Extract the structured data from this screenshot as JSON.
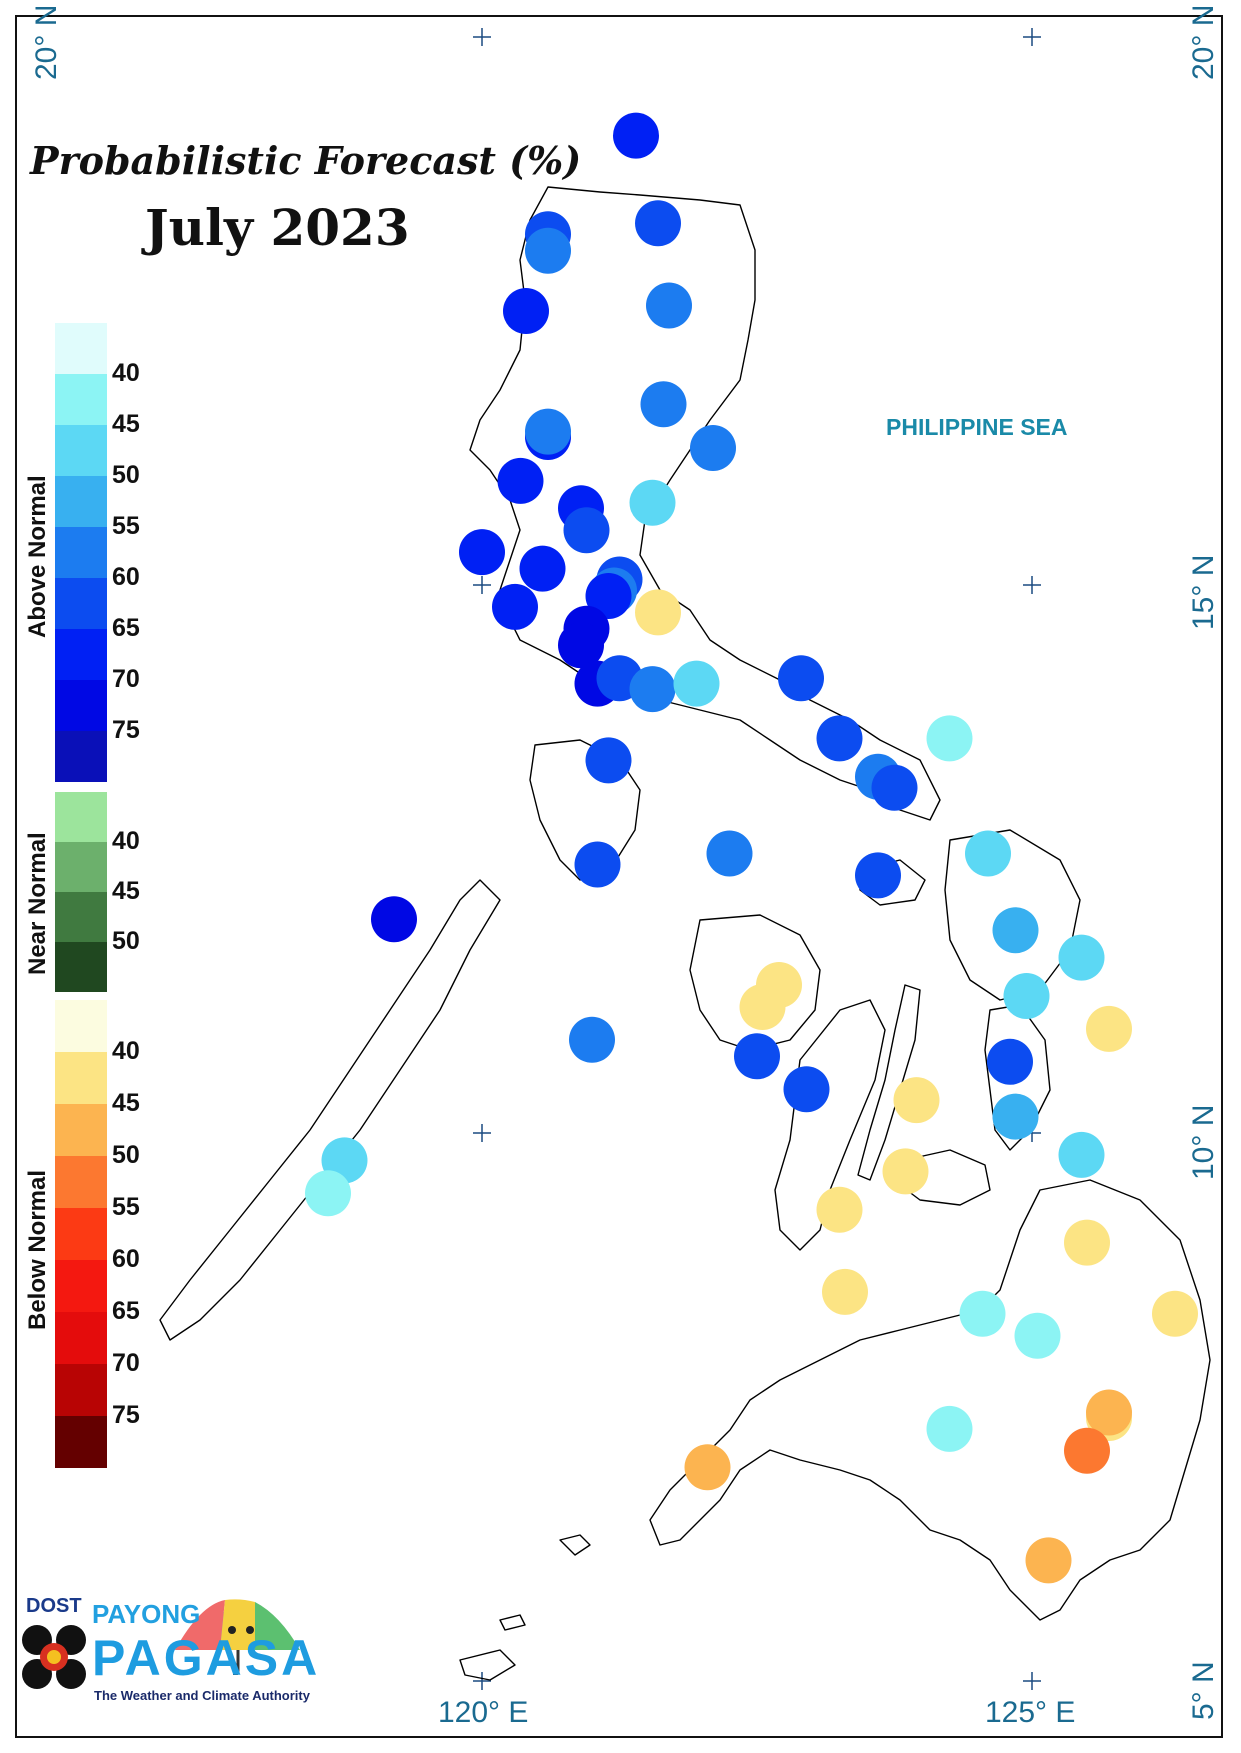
{
  "title": "Probabilistic Forecast (%)",
  "subtitle": "July 2023",
  "sea_label": "PHILIPPINE SEA",
  "coords": {
    "lat_20_left": "20° N",
    "lat_20_right": "20° N",
    "lat_15": "15° N",
    "lat_10": "10° N",
    "lat_5": "5° N",
    "lon_120": "120° E",
    "lon_125": "125° E"
  },
  "legend": {
    "above": {
      "label": "Above Normal",
      "colors": [
        "#e0fcfc",
        "#8cf4f4",
        "#5cd8f4",
        "#38b0f0",
        "#1c7cf0",
        "#0c4cf0",
        "#0020f4",
        "#0008e4",
        "#0a10b8"
      ],
      "ticks": [
        "40",
        "45",
        "50",
        "55",
        "60",
        "65",
        "70",
        "75"
      ]
    },
    "near": {
      "label": "Near Normal",
      "colors": [
        "#9ce49c",
        "#6cb06c",
        "#407a40",
        "#204820"
      ],
      "ticks": [
        "40",
        "45",
        "50"
      ]
    },
    "below": {
      "label": "Below Normal",
      "colors": [
        "#fcfce0",
        "#fce484",
        "#fcb450",
        "#fc7830",
        "#fc3a14",
        "#f41810",
        "#e40c0c",
        "#b80404",
        "#640000"
      ],
      "ticks": [
        "40",
        "45",
        "50",
        "55",
        "60",
        "65",
        "70",
        "75"
      ]
    }
  },
  "stations": [
    {
      "lon": 121.4,
      "lat": 19.1,
      "cat": "above",
      "prob": 65
    },
    {
      "lon": 121.6,
      "lat": 18.3,
      "cat": "above",
      "prob": 60
    },
    {
      "lon": 120.6,
      "lat": 18.2,
      "cat": "above",
      "prob": 60
    },
    {
      "lon": 120.6,
      "lat": 18.05,
      "cat": "above",
      "prob": 55
    },
    {
      "lon": 120.4,
      "lat": 17.5,
      "cat": "above",
      "prob": 65
    },
    {
      "lon": 121.7,
      "lat": 17.55,
      "cat": "above",
      "prob": 55
    },
    {
      "lon": 121.65,
      "lat": 16.65,
      "cat": "above",
      "prob": 55
    },
    {
      "lon": 120.6,
      "lat": 16.35,
      "cat": "above",
      "prob": 65
    },
    {
      "lon": 120.6,
      "lat": 16.4,
      "cat": "above",
      "prob": 55
    },
    {
      "lon": 122.1,
      "lat": 16.25,
      "cat": "above",
      "prob": 55
    },
    {
      "lon": 120.35,
      "lat": 15.95,
      "cat": "above",
      "prob": 65
    },
    {
      "lon": 120.9,
      "lat": 15.7,
      "cat": "above",
      "prob": 65
    },
    {
      "lon": 121.55,
      "lat": 15.75,
      "cat": "above",
      "prob": 45
    },
    {
      "lon": 120.95,
      "lat": 15.5,
      "cat": "above",
      "prob": 60
    },
    {
      "lon": 120.0,
      "lat": 15.3,
      "cat": "above",
      "prob": 65
    },
    {
      "lon": 120.55,
      "lat": 15.15,
      "cat": "above",
      "prob": 65
    },
    {
      "lon": 121.25,
      "lat": 15.05,
      "cat": "above",
      "prob": 60
    },
    {
      "lon": 121.2,
      "lat": 14.95,
      "cat": "above",
      "prob": 55
    },
    {
      "lon": 121.15,
      "lat": 14.9,
      "cat": "above",
      "prob": 65
    },
    {
      "lon": 120.3,
      "lat": 14.8,
      "cat": "above",
      "prob": 65
    },
    {
      "lon": 121.6,
      "lat": 14.75,
      "cat": "below",
      "prob": 40
    },
    {
      "lon": 120.95,
      "lat": 14.6,
      "cat": "above",
      "prob": 70
    },
    {
      "lon": 120.9,
      "lat": 14.45,
      "cat": "above",
      "prob": 70
    },
    {
      "lon": 121.05,
      "lat": 14.1,
      "cat": "above",
      "prob": 70
    },
    {
      "lon": 121.25,
      "lat": 14.15,
      "cat": "above",
      "prob": 60
    },
    {
      "lon": 121.55,
      "lat": 14.05,
      "cat": "above",
      "prob": 55
    },
    {
      "lon": 121.95,
      "lat": 14.1,
      "cat": "above",
      "prob": 45
    },
    {
      "lon": 122.9,
      "lat": 14.15,
      "cat": "above",
      "prob": 60
    },
    {
      "lon": 121.15,
      "lat": 13.4,
      "cat": "above",
      "prob": 60
    },
    {
      "lon": 123.25,
      "lat": 13.6,
      "cat": "above",
      "prob": 60
    },
    {
      "lon": 124.25,
      "lat": 13.6,
      "cat": "above",
      "prob": 40
    },
    {
      "lon": 123.6,
      "lat": 13.25,
      "cat": "above",
      "prob": 55
    },
    {
      "lon": 123.75,
      "lat": 13.15,
      "cat": "above",
      "prob": 60
    },
    {
      "lon": 122.25,
      "lat": 12.55,
      "cat": "above",
      "prob": 55
    },
    {
      "lon": 121.05,
      "lat": 12.45,
      "cat": "above",
      "prob": 60
    },
    {
      "lon": 123.6,
      "lat": 12.35,
      "cat": "above",
      "prob": 60
    },
    {
      "lon": 124.6,
      "lat": 12.55,
      "cat": "above",
      "prob": 45
    },
    {
      "lon": 119.2,
      "lat": 11.95,
      "cat": "above",
      "prob": 70
    },
    {
      "lon": 124.85,
      "lat": 11.85,
      "cat": "above",
      "prob": 50
    },
    {
      "lon": 125.45,
      "lat": 11.6,
      "cat": "above",
      "prob": 45
    },
    {
      "lon": 122.7,
      "lat": 11.35,
      "cat": "below",
      "prob": 40
    },
    {
      "lon": 122.55,
      "lat": 11.15,
      "cat": "below",
      "prob": 40
    },
    {
      "lon": 124.95,
      "lat": 11.25,
      "cat": "above",
      "prob": 45
    },
    {
      "lon": 125.7,
      "lat": 10.95,
      "cat": "below",
      "prob": 40
    },
    {
      "lon": 121.0,
      "lat": 10.85,
      "cat": "above",
      "prob": 55
    },
    {
      "lon": 122.5,
      "lat": 10.7,
      "cat": "above",
      "prob": 60
    },
    {
      "lon": 124.8,
      "lat": 10.65,
      "cat": "above",
      "prob": 60
    },
    {
      "lon": 122.95,
      "lat": 10.4,
      "cat": "above",
      "prob": 60
    },
    {
      "lon": 123.95,
      "lat": 10.3,
      "cat": "below",
      "prob": 40
    },
    {
      "lon": 124.85,
      "lat": 10.15,
      "cat": "above",
      "prob": 50
    },
    {
      "lon": 118.75,
      "lat": 9.75,
      "cat": "above",
      "prob": 45
    },
    {
      "lon": 125.45,
      "lat": 9.8,
      "cat": "above",
      "prob": 45
    },
    {
      "lon": 118.6,
      "lat": 9.45,
      "cat": "above",
      "prob": 40
    },
    {
      "lon": 123.85,
      "lat": 9.65,
      "cat": "below",
      "prob": 40
    },
    {
      "lon": 123.25,
      "lat": 9.3,
      "cat": "below",
      "prob": 40
    },
    {
      "lon": 125.5,
      "lat": 9.0,
      "cat": "below",
      "prob": 40
    },
    {
      "lon": 123.3,
      "lat": 8.55,
      "cat": "below",
      "prob": 40
    },
    {
      "lon": 124.55,
      "lat": 8.35,
      "cat": "above",
      "prob": 40
    },
    {
      "lon": 126.3,
      "lat": 8.35,
      "cat": "below",
      "prob": 40
    },
    {
      "lon": 125.05,
      "lat": 8.15,
      "cat": "above",
      "prob": 40
    },
    {
      "lon": 124.25,
      "lat": 7.3,
      "cat": "above",
      "prob": 40
    },
    {
      "lon": 125.7,
      "lat": 7.4,
      "cat": "below",
      "prob": 40
    },
    {
      "lon": 125.7,
      "lat": 7.45,
      "cat": "below",
      "prob": 45
    },
    {
      "lon": 125.5,
      "lat": 7.1,
      "cat": "below",
      "prob": 50
    },
    {
      "lon": 122.05,
      "lat": 6.95,
      "cat": "below",
      "prob": 45
    },
    {
      "lon": 125.15,
      "lat": 6.1,
      "cat": "below",
      "prob": 45
    }
  ],
  "logo": {
    "dost": "DOST",
    "payong": "PAYONG",
    "pagasa": "PAGASA",
    "tagline": "The Weather and Climate Authority"
  }
}
